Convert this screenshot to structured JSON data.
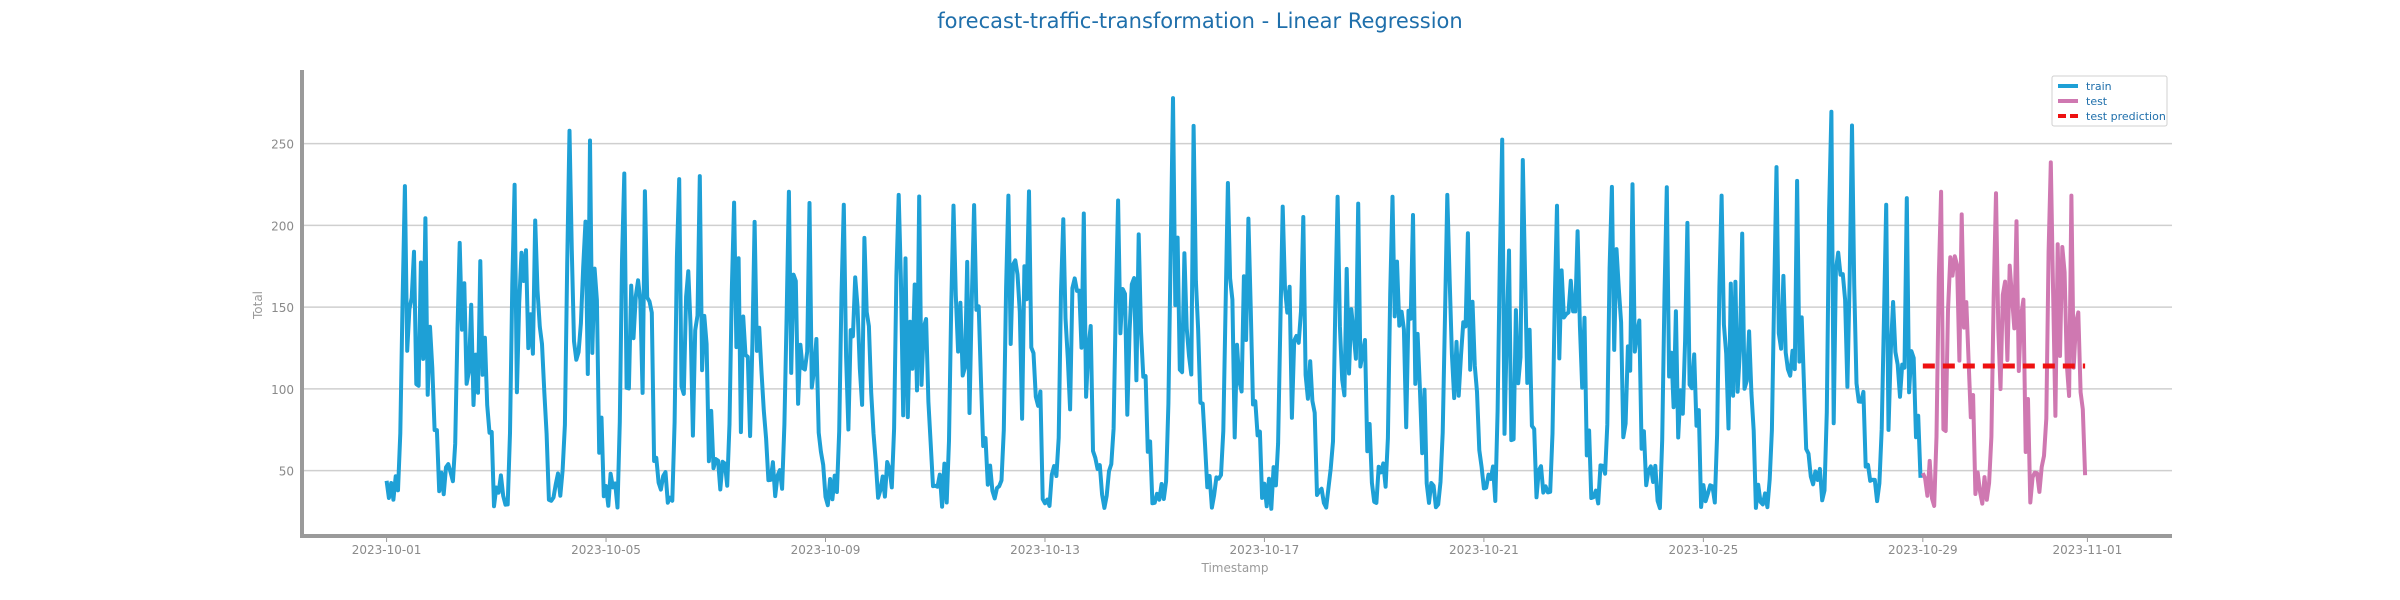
{
  "chart_data": {
    "type": "line",
    "title": "forecast-traffic-transformation - Linear Regression",
    "xlabel": "Timestamp",
    "ylabel": "Total",
    "x_ticks": [
      "2023-10-01",
      "2023-10-05",
      "2023-10-09",
      "2023-10-13",
      "2023-10-17",
      "2023-10-21",
      "2023-10-25",
      "2023-10-29",
      "2023-11-01"
    ],
    "y_ticks": [
      50,
      100,
      150,
      200,
      250
    ],
    "xlim": [
      "2023-09-29T11:00",
      "2023-11-02T13:00"
    ],
    "ylim": [
      10,
      295
    ],
    "grid": "horizontal",
    "legend_position": "top-right",
    "colors": {
      "train": "#1ea0d6",
      "test": "#cf78b1",
      "test_prediction": "#ee1111"
    },
    "series": [
      {
        "name": "train",
        "x_range": [
          "2023-10-01T00:00",
          "2023-10-28T23:00"
        ],
        "sampling": "hourly",
        "daily_peaks": [
          228,
          195,
          229,
          265,
          237,
          237,
          222,
          222,
          215,
          223,
          220,
          226,
          210,
          216,
          278,
          226,
          212,
          218,
          223,
          220,
          256,
          220,
          230,
          225,
          220,
          236,
          280,
          220
        ],
        "daily_troughs": [
          30,
          28,
          27,
          25,
          25,
          30,
          30,
          28,
          27,
          28,
          27,
          26,
          28,
          27,
          27,
          25,
          25,
          27,
          27,
          26,
          28,
          27,
          27,
          26,
          27,
          26,
          30,
          30
        ]
      },
      {
        "name": "test",
        "x_range": [
          "2023-10-29T00:00",
          "2023-10-31T23:00"
        ],
        "sampling": "hourly",
        "daily_peaks": [
          225,
          228,
          240
        ],
        "daily_troughs": [
          28,
          28,
          32
        ]
      },
      {
        "name": "test prediction",
        "x_range": [
          "2023-10-29T00:00",
          "2023-10-31T23:00"
        ],
        "value": 114
      }
    ]
  }
}
